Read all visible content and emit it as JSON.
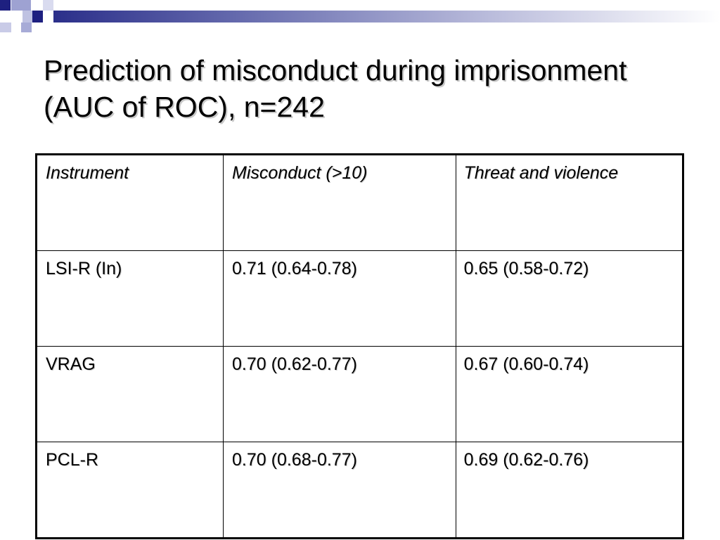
{
  "slide": {
    "title": "Prediction of misconduct during imprisonment (AUC of ROC), n=242"
  },
  "table": {
    "headers": [
      "Instrument",
      "Misconduct (>10)",
      "Threat and violence"
    ],
    "rows": [
      [
        "LSI-R (In)",
        "0.71 (0.64-0.78)",
        "0.65 (0.58-0.72)"
      ],
      [
        "VRAG",
        "0.70 (0.62-0.77)",
        "0.67 (0.60-0.74)"
      ],
      [
        "PCL-R",
        "0.70 (0.68-0.77)",
        "0.69 (0.62-0.76)"
      ]
    ]
  },
  "theme": {
    "accent": "#1e2080",
    "accent_light": "#9ea2d2"
  }
}
